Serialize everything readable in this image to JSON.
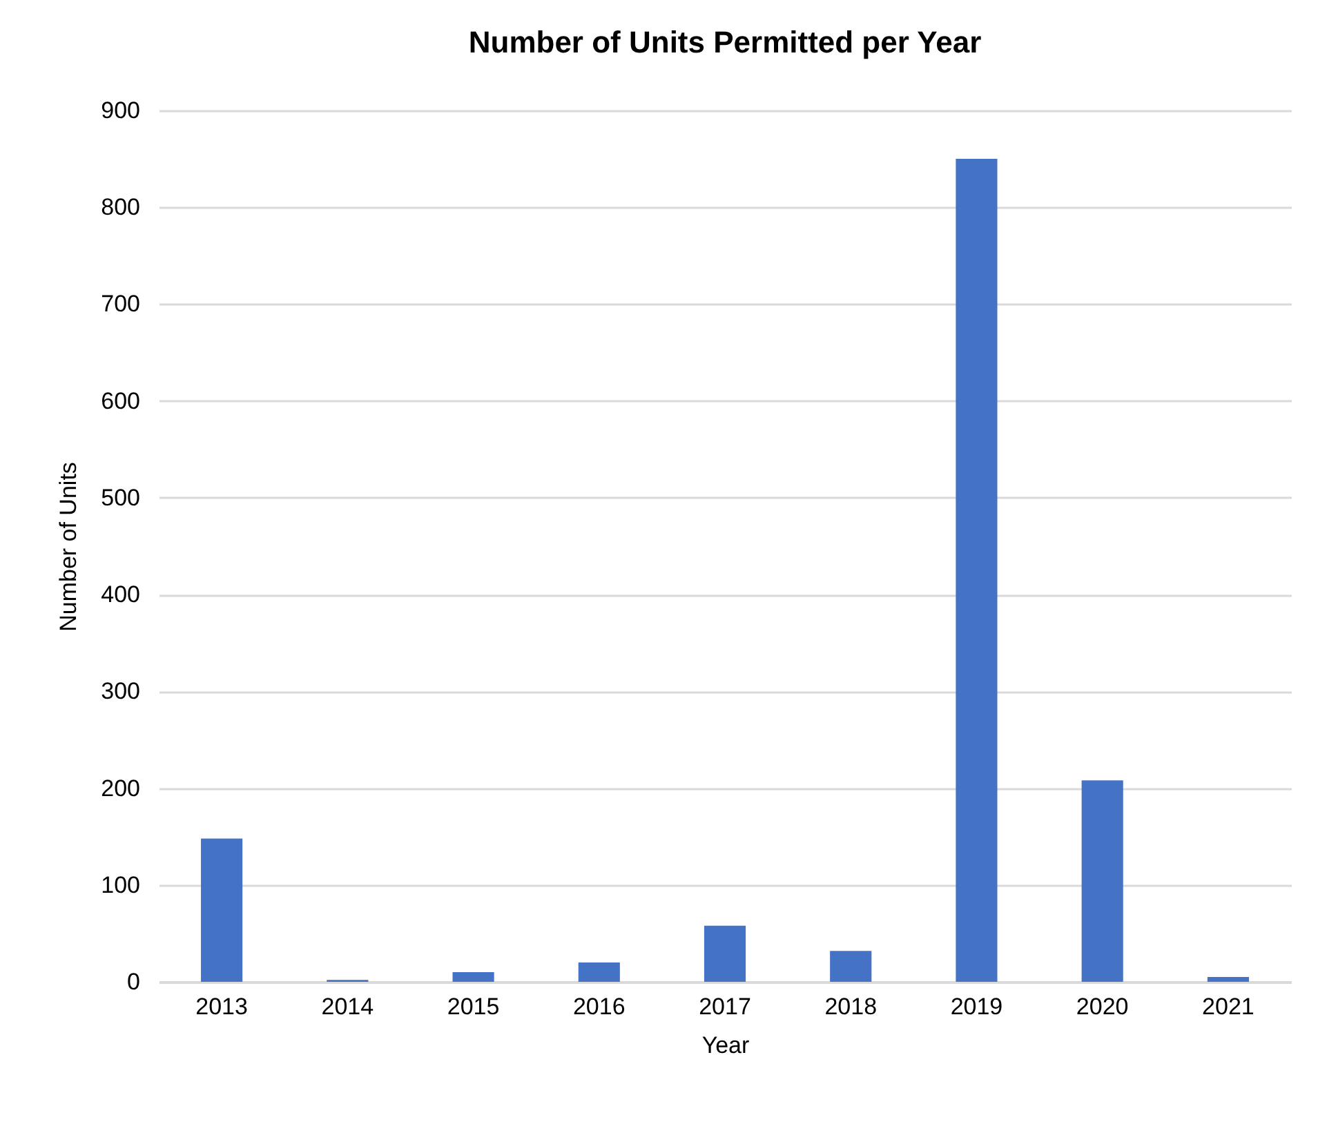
{
  "chart_data": {
    "type": "bar",
    "title": "Number of Units Permitted per Year",
    "xlabel": "Year",
    "ylabel": "Number of Units",
    "categories": [
      "2013",
      "2014",
      "2015",
      "2016",
      "2017",
      "2018",
      "2019",
      "2020",
      "2021"
    ],
    "values": [
      148,
      2,
      10,
      20,
      58,
      32,
      850,
      208,
      5
    ],
    "color": "#4472c4",
    "ylim": [
      0,
      900
    ],
    "yticks": [
      0,
      100,
      200,
      300,
      400,
      500,
      600,
      700,
      800,
      900
    ],
    "grid": "y"
  }
}
